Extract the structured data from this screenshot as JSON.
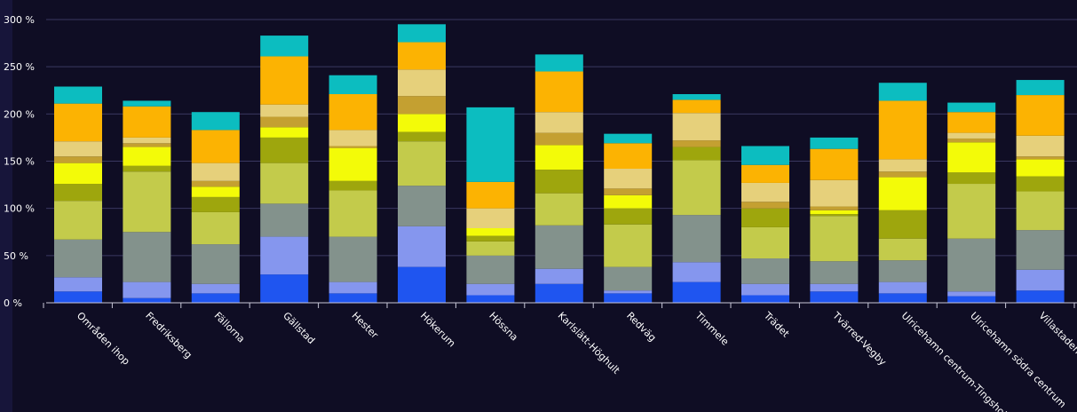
{
  "colors": {
    "background": "#0f0d24",
    "grid": "#3a3860",
    "axis": "#c8c8d8",
    "text": "#ffffff",
    "segments": [
      "#1f55f0",
      "#8596ee",
      "#83928c",
      "#c3cb4b",
      "#9ea60d",
      "#f3fb08",
      "#c4a031",
      "#e6d07b",
      "#fcb302",
      "#0cbdc0"
    ]
  },
  "chart_data": {
    "type": "bar",
    "stacked": true,
    "ylim": [
      0,
      300
    ],
    "yticks": [
      {
        "value": 0,
        "label": "0 %"
      },
      {
        "value": 50,
        "label": "50 %"
      },
      {
        "value": 100,
        "label": "100 %"
      },
      {
        "value": 150,
        "label": "150 %"
      },
      {
        "value": 200,
        "label": "200 %"
      },
      {
        "value": 250,
        "label": "250 %"
      },
      {
        "value": 300,
        "label": "300 %"
      }
    ],
    "grid": true,
    "legend": "none",
    "categories": [
      "Områden ihop",
      "Fredriksberg",
      "Fällorna",
      "Gällstad",
      "Hester",
      "Hökerum",
      "Hössna",
      "Karlslätt-Höghult",
      "Redväg",
      "Timmele",
      "Trädet",
      "Tvärred-Vegby",
      "Ulricehamn centrum-Tingsholm",
      "Ulricehamn södra centrum",
      "Villastaden"
    ],
    "series": [
      {
        "values": [
          12,
          5,
          10,
          30,
          10,
          38,
          8,
          20,
          10,
          22,
          8,
          12,
          10,
          7,
          13
        ]
      },
      {
        "values": [
          15,
          17,
          10,
          40,
          12,
          43,
          12,
          16,
          3,
          21,
          12,
          8,
          12,
          5,
          22
        ]
      },
      {
        "values": [
          40,
          53,
          42,
          35,
          48,
          43,
          30,
          46,
          25,
          50,
          27,
          24,
          23,
          56,
          42
        ]
      },
      {
        "values": [
          41,
          64,
          34,
          43,
          49,
          47,
          15,
          34,
          45,
          58,
          33,
          48,
          23,
          58,
          41
        ]
      },
      {
        "values": [
          18,
          6,
          16,
          27,
          10,
          10,
          6,
          25,
          17,
          14,
          20,
          2,
          30,
          12,
          16
        ]
      },
      {
        "values": [
          22,
          20,
          11,
          11,
          35,
          19,
          8,
          26,
          14,
          0,
          0,
          4,
          35,
          32,
          18
        ]
      },
      {
        "values": [
          7,
          4,
          6,
          11,
          2,
          19,
          0,
          13,
          7,
          7,
          7,
          4,
          6,
          4,
          3
        ]
      },
      {
        "values": [
          16,
          6,
          19,
          13,
          17,
          28,
          21,
          22,
          21,
          29,
          20,
          28,
          13,
          6,
          22
        ]
      },
      {
        "values": [
          40,
          33,
          35,
          51,
          38,
          29,
          28,
          43,
          27,
          14,
          19,
          33,
          62,
          22,
          43
        ]
      },
      {
        "values": [
          18,
          6,
          19,
          22,
          20,
          19,
          79,
          18,
          10,
          6,
          20,
          12,
          19,
          10,
          16
        ]
      }
    ]
  }
}
